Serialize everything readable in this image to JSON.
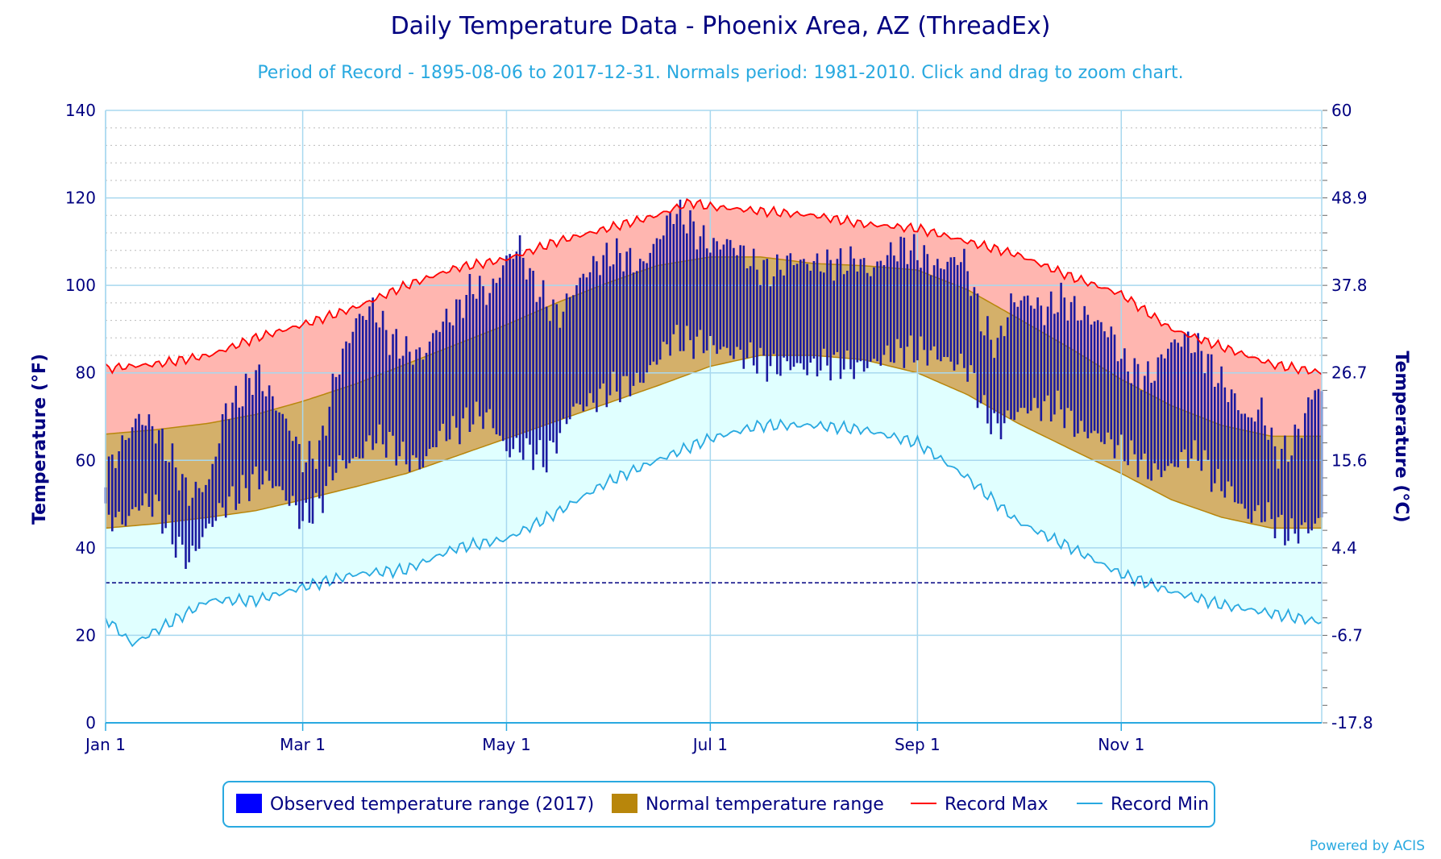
{
  "chart_data": {
    "type": "line",
    "title": "Daily Temperature Data - Phoenix Area, AZ (ThreadEx)",
    "subtitle": "Period of Record - 1895-08-06 to 2017-12-31. Normals period: 1981-2010. Click and drag to zoom chart.",
    "ylabel": "Temperature (°F)",
    "ylabel_right": "Temperature (°C)",
    "ylim": [
      0,
      140
    ],
    "yticks": [
      0,
      20,
      40,
      60,
      80,
      100,
      120,
      140
    ],
    "yticks_right": [
      {
        "label": "60",
        "f": 140
      },
      {
        "label": "48.9",
        "f": 120
      },
      {
        "label": "37.8",
        "f": 100
      },
      {
        "label": "26.7",
        "f": 80
      },
      {
        "label": "15.6",
        "f": 60
      },
      {
        "label": "4.4",
        "f": 40
      },
      {
        "label": "-6.7",
        "f": 20
      },
      {
        "label": "-17.8",
        "f": 0
      }
    ],
    "xlim_day": [
      0,
      364
    ],
    "xticks": [
      {
        "label": "Jan 1",
        "day": 0
      },
      {
        "label": "Mar 1",
        "day": 59
      },
      {
        "label": "May 1",
        "day": 120
      },
      {
        "label": "Jul 1",
        "day": 181
      },
      {
        "label": "Sep 1",
        "day": 243
      },
      {
        "label": "Nov 1",
        "day": 304
      }
    ],
    "freezing_line_f": 32,
    "grid": true,
    "legend_position": "bottom",
    "series": [
      {
        "name": "Observed temperature range (2017)",
        "type": "daily-range-bars",
        "color": "#0000ff",
        "stroke": "#00008b"
      },
      {
        "name": "Normal temperature range",
        "type": "band",
        "color": "#b8860b",
        "normal_max_points": [
          [
            0,
            66
          ],
          [
            15,
            67
          ],
          [
            31,
            68.5
          ],
          [
            45,
            70.5
          ],
          [
            59,
            73.5
          ],
          [
            75,
            77.5
          ],
          [
            90,
            82
          ],
          [
            105,
            86.5
          ],
          [
            120,
            91
          ],
          [
            135,
            96
          ],
          [
            150,
            100.5
          ],
          [
            165,
            104.5
          ],
          [
            181,
            106.5
          ],
          [
            196,
            106.5
          ],
          [
            212,
            105
          ],
          [
            227,
            104.5
          ],
          [
            243,
            103.5
          ],
          [
            258,
            99
          ],
          [
            273,
            92.5
          ],
          [
            289,
            85.5
          ],
          [
            304,
            78.5
          ],
          [
            319,
            72.5
          ],
          [
            334,
            68
          ],
          [
            349,
            65.5
          ],
          [
            364,
            65.5
          ]
        ],
        "normal_min_points": [
          [
            0,
            44.5
          ],
          [
            15,
            45.5
          ],
          [
            31,
            47
          ],
          [
            45,
            48.5
          ],
          [
            59,
            51
          ],
          [
            75,
            54
          ],
          [
            90,
            57
          ],
          [
            105,
            61
          ],
          [
            120,
            65
          ],
          [
            135,
            69
          ],
          [
            150,
            73
          ],
          [
            165,
            77
          ],
          [
            181,
            81.5
          ],
          [
            196,
            84
          ],
          [
            212,
            84
          ],
          [
            227,
            83
          ],
          [
            243,
            80
          ],
          [
            258,
            75
          ],
          [
            273,
            68.5
          ],
          [
            289,
            62.5
          ],
          [
            304,
            57
          ],
          [
            319,
            51
          ],
          [
            334,
            47
          ],
          [
            349,
            44.5
          ],
          [
            364,
            44.5
          ]
        ]
      },
      {
        "name": "Record Max",
        "type": "line",
        "color": "#ff0000",
        "points": [
          [
            0,
            81
          ],
          [
            15,
            82
          ],
          [
            31,
            84
          ],
          [
            45,
            88
          ],
          [
            59,
            91
          ],
          [
            75,
            95
          ],
          [
            90,
            100
          ],
          [
            105,
            104
          ],
          [
            120,
            106
          ],
          [
            135,
            110
          ],
          [
            150,
            113
          ],
          [
            165,
            116
          ],
          [
            175,
            119
          ],
          [
            181,
            118
          ],
          [
            196,
            117
          ],
          [
            212,
            116
          ],
          [
            227,
            114
          ],
          [
            243,
            113
          ],
          [
            258,
            110
          ],
          [
            273,
            107
          ],
          [
            289,
            102
          ],
          [
            304,
            98
          ],
          [
            319,
            90
          ],
          [
            334,
            86
          ],
          [
            349,
            82
          ],
          [
            364,
            80
          ]
        ]
      },
      {
        "name": "Record Min",
        "type": "line",
        "color": "#29a9e0",
        "points": [
          [
            0,
            24
          ],
          [
            8,
            18
          ],
          [
            15,
            21
          ],
          [
            31,
            28
          ],
          [
            45,
            28
          ],
          [
            59,
            31
          ],
          [
            75,
            34
          ],
          [
            90,
            35
          ],
          [
            105,
            40
          ],
          [
            120,
            42
          ],
          [
            135,
            48
          ],
          [
            150,
            55
          ],
          [
            165,
            60
          ],
          [
            181,
            65
          ],
          [
            196,
            68
          ],
          [
            212,
            68
          ],
          [
            227,
            67
          ],
          [
            243,
            64
          ],
          [
            258,
            56
          ],
          [
            273,
            46
          ],
          [
            289,
            40
          ],
          [
            304,
            34
          ],
          [
            319,
            30
          ],
          [
            334,
            27
          ],
          [
            349,
            25
          ],
          [
            364,
            23
          ]
        ]
      }
    ],
    "observed_2017": {
      "highs": [
        [
          0,
          57
        ],
        [
          6,
          65
        ],
        [
          10,
          70
        ],
        [
          15,
          67
        ],
        [
          20,
          60
        ],
        [
          25,
          52
        ],
        [
          31,
          55
        ],
        [
          36,
          72
        ],
        [
          40,
          74
        ],
        [
          45,
          80
        ],
        [
          50,
          74
        ],
        [
          56,
          66
        ],
        [
          59,
          60
        ],
        [
          64,
          62
        ],
        [
          69,
          80
        ],
        [
          75,
          92
        ],
        [
          80,
          95
        ],
        [
          85,
          88
        ],
        [
          90,
          85
        ],
        [
          95,
          84
        ],
        [
          100,
          91
        ],
        [
          105,
          94
        ],
        [
          110,
          100
        ],
        [
          115,
          98
        ],
        [
          120,
          106
        ],
        [
          124,
          109
        ],
        [
          127,
          102
        ],
        [
          132,
          96
        ],
        [
          136,
          93
        ],
        [
          140,
          99
        ],
        [
          145,
          104
        ],
        [
          151,
          107
        ],
        [
          155,
          107
        ],
        [
          160,
          104
        ],
        [
          165,
          110
        ],
        [
          170,
          117
        ],
        [
          174,
          115
        ],
        [
          178,
          111
        ],
        [
          182,
          109
        ],
        [
          186,
          110
        ],
        [
          190,
          108
        ],
        [
          195,
          104
        ],
        [
          200,
          103
        ],
        [
          205,
          106
        ],
        [
          210,
          105
        ],
        [
          215,
          105
        ],
        [
          220,
          105
        ],
        [
          225,
          106
        ],
        [
          229,
          103
        ],
        [
          234,
          107
        ],
        [
          239,
          109
        ],
        [
          244,
          107
        ],
        [
          249,
          104
        ],
        [
          254,
          106
        ],
        [
          257,
          106
        ],
        [
          260,
          98
        ],
        [
          263,
          90
        ],
        [
          267,
          86
        ],
        [
          271,
          96
        ],
        [
          276,
          97
        ],
        [
          281,
          94
        ],
        [
          286,
          97
        ],
        [
          291,
          94
        ],
        [
          296,
          92
        ],
        [
          301,
          89
        ],
        [
          305,
          82
        ],
        [
          309,
          80
        ],
        [
          313,
          79
        ],
        [
          318,
          86
        ],
        [
          323,
          88
        ],
        [
          328,
          85
        ],
        [
          332,
          80
        ],
        [
          337,
          75
        ],
        [
          342,
          69
        ],
        [
          346,
          72
        ],
        [
          350,
          62
        ],
        [
          354,
          62
        ],
        [
          358,
          68
        ],
        [
          362,
          77
        ],
        [
          364,
          75
        ]
      ],
      "lows": [
        [
          0,
          47
        ],
        [
          6,
          46
        ],
        [
          10,
          50
        ],
        [
          15,
          50
        ],
        [
          20,
          42
        ],
        [
          25,
          37
        ],
        [
          31,
          45
        ],
        [
          36,
          50
        ],
        [
          40,
          52
        ],
        [
          45,
          56
        ],
        [
          50,
          55
        ],
        [
          56,
          50
        ],
        [
          59,
          46
        ],
        [
          64,
          50
        ],
        [
          69,
          59
        ],
        [
          75,
          60
        ],
        [
          80,
          65
        ],
        [
          85,
          64
        ],
        [
          90,
          60
        ],
        [
          95,
          59
        ],
        [
          100,
          66
        ],
        [
          105,
          67
        ],
        [
          110,
          70
        ],
        [
          115,
          70
        ],
        [
          120,
          62
        ],
        [
          124,
          63
        ],
        [
          127,
          62
        ],
        [
          132,
          60
        ],
        [
          136,
          66
        ],
        [
          140,
          72
        ],
        [
          145,
          73
        ],
        [
          151,
          76
        ],
        [
          155,
          77
        ],
        [
          160,
          78
        ],
        [
          165,
          83
        ],
        [
          170,
          88
        ],
        [
          174,
          87
        ],
        [
          178,
          87
        ],
        [
          182,
          86
        ],
        [
          186,
          85
        ],
        [
          190,
          84
        ],
        [
          195,
          83
        ],
        [
          200,
          81
        ],
        [
          205,
          82
        ],
        [
          210,
          81
        ],
        [
          215,
          82
        ],
        [
          220,
          82
        ],
        [
          225,
          81
        ],
        [
          229,
          82
        ],
        [
          234,
          84
        ],
        [
          239,
          85
        ],
        [
          244,
          85
        ],
        [
          249,
          84
        ],
        [
          254,
          82
        ],
        [
          257,
          82
        ],
        [
          260,
          78
        ],
        [
          263,
          71
        ],
        [
          267,
          67
        ],
        [
          271,
          70
        ],
        [
          276,
          72
        ],
        [
          281,
          72
        ],
        [
          286,
          72
        ],
        [
          291,
          67
        ],
        [
          296,
          66
        ],
        [
          301,
          64
        ],
        [
          305,
          62
        ],
        [
          309,
          60
        ],
        [
          313,
          57
        ],
        [
          318,
          58
        ],
        [
          323,
          61
        ],
        [
          328,
          61
        ],
        [
          332,
          55
        ],
        [
          337,
          53
        ],
        [
          342,
          47
        ],
        [
          346,
          48
        ],
        [
          350,
          46
        ],
        [
          354,
          43
        ],
        [
          358,
          44
        ],
        [
          362,
          45
        ],
        [
          364,
          47
        ]
      ]
    }
  },
  "legend": [
    {
      "key": "observed",
      "label": "Observed temperature range (2017)",
      "color": "#0000ff",
      "swatch": "box"
    },
    {
      "key": "normal",
      "label": "Normal temperature range",
      "color": "#b8860b",
      "swatch": "box"
    },
    {
      "key": "recmax",
      "label": "Record Max",
      "color": "#ff0000",
      "swatch": "line"
    },
    {
      "key": "recmin",
      "label": "Record Min",
      "color": "#29a9e0",
      "swatch": "line"
    }
  ],
  "credit": "Powered by ACIS"
}
